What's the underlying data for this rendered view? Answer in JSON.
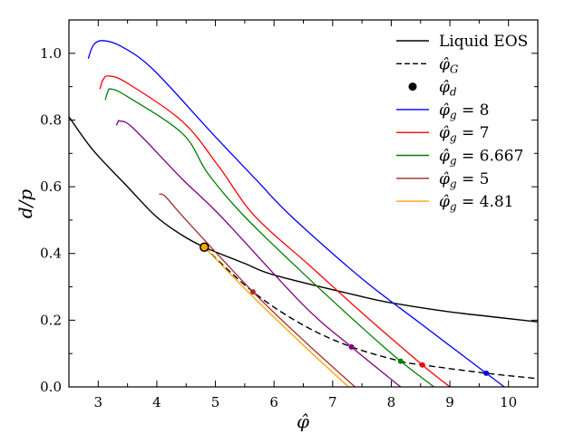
{
  "chart_data": {
    "type": "line",
    "xlabel": "φ̂",
    "ylabel": "d/p",
    "xlim": [
      2.5,
      10.5
    ],
    "ylim": [
      0,
      1.1
    ],
    "xticks": [
      "3",
      "4",
      "5",
      "6",
      "7",
      "8",
      "9",
      "10"
    ],
    "yticks": [
      "0.0",
      "0.2",
      "0.4",
      "0.6",
      "0.8",
      "1.0"
    ],
    "grid": false,
    "legend_placement": "top-right",
    "series": [
      {
        "name": "Liquid EOS",
        "color": "#000000",
        "style": "solid",
        "points": [
          [
            2.5,
            0.81
          ],
          [
            2.91,
            0.71
          ],
          [
            3.5,
            0.6
          ],
          [
            3.98,
            0.512
          ],
          [
            4.41,
            0.457
          ],
          [
            4.81,
            0.419
          ],
          [
            5.5,
            0.37
          ],
          [
            6.03,
            0.334
          ],
          [
            7.49,
            0.271
          ],
          [
            8,
            0.252
          ],
          [
            9,
            0.225
          ],
          [
            10.5,
            0.195
          ]
        ]
      },
      {
        "name": "φ̂_G",
        "color": "#000000",
        "style": "dashed",
        "points": [
          [
            4.81,
            0.419
          ],
          [
            5.64,
            0.285
          ],
          [
            6.5,
            0.185
          ],
          [
            7.32,
            0.12
          ],
          [
            8.16,
            0.077
          ],
          [
            8.53,
            0.066
          ],
          [
            9.62,
            0.041
          ],
          [
            10.5,
            0.025
          ]
        ]
      },
      {
        "name": "φ̂_d",
        "color": "#000000",
        "style": "marker",
        "points": [
          [
            4.81,
            0.419
          ]
        ]
      },
      {
        "name": "φ̂_g = 8",
        "color": "#0000ff",
        "style": "solid",
        "points": [
          [
            2.83,
            0.984
          ],
          [
            2.92,
            1.025
          ],
          [
            3.08,
            1.038
          ],
          [
            3.4,
            1.02
          ],
          [
            3.94,
            0.951
          ],
          [
            4.95,
            0.759
          ],
          [
            5.7,
            0.62
          ],
          [
            6.29,
            0.512
          ],
          [
            7.49,
            0.326
          ],
          [
            8.5,
            0.19
          ],
          [
            9.62,
            0.041
          ],
          [
            9.93,
            0
          ]
        ],
        "marker": [
          9.62,
          0.041
        ]
      },
      {
        "name": "φ̂_g = 7",
        "color": "#ff0000",
        "style": "solid",
        "points": [
          [
            3.03,
            0.893
          ],
          [
            3.08,
            0.92
          ],
          [
            3.18,
            0.932
          ],
          [
            3.5,
            0.91
          ],
          [
            4.44,
            0.795
          ],
          [
            5.06,
            0.66
          ],
          [
            5.67,
            0.512
          ],
          [
            6.6,
            0.365
          ],
          [
            7.52,
            0.219
          ],
          [
            8.53,
            0.066
          ],
          [
            9.0,
            0
          ]
        ],
        "marker": [
          8.53,
          0.066
        ]
      },
      {
        "name": "φ̂_g = 6.667",
        "color": "#008000",
        "style": "solid",
        "points": [
          [
            3.12,
            0.86
          ],
          [
            3.16,
            0.883
          ],
          [
            3.22,
            0.893
          ],
          [
            3.5,
            0.87
          ],
          [
            4.44,
            0.759
          ],
          [
            4.87,
            0.64
          ],
          [
            5.49,
            0.512
          ],
          [
            6.5,
            0.34
          ],
          [
            7.52,
            0.175
          ],
          [
            8.16,
            0.077
          ],
          [
            8.73,
            0
          ]
        ],
        "marker": [
          8.16,
          0.077
        ]
      },
      {
        "name": "",
        "color": "#800080",
        "style": "solid",
        "points": [
          [
            3.31,
            0.784
          ],
          [
            3.34,
            0.795
          ],
          [
            3.37,
            0.797
          ],
          [
            3.6,
            0.775
          ],
          [
            4.44,
            0.622
          ],
          [
            5.09,
            0.512
          ],
          [
            6.49,
            0.247
          ],
          [
            7.32,
            0.12
          ],
          [
            8.16,
            0
          ]
        ],
        "marker": [
          7.32,
          0.12
        ]
      },
      {
        "name": "φ̂_g = 5",
        "color": "#a52a2a",
        "style": "solid",
        "points": [
          [
            4.04,
            0.578
          ],
          [
            4.15,
            0.57
          ],
          [
            4.5,
            0.5
          ],
          [
            5.64,
            0.285
          ],
          [
            6.5,
            0.14
          ],
          [
            7.38,
            0
          ]
        ],
        "marker": [
          5.64,
          0.285
        ]
      },
      {
        "name": "φ̂_g = 4.81",
        "color": "#ffa500",
        "style": "solid",
        "points": [
          [
            4.81,
            0.419
          ],
          [
            5.64,
            0.27
          ],
          [
            6.5,
            0.125
          ],
          [
            7.27,
            0
          ]
        ]
      }
    ]
  }
}
